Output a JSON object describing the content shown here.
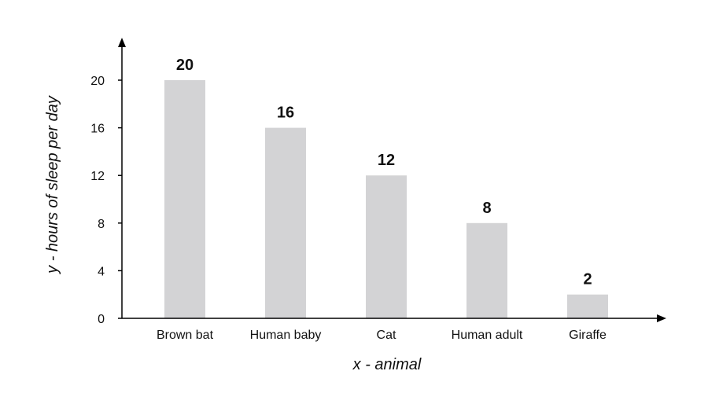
{
  "chart_data": {
    "type": "bar",
    "categories": [
      "Brown bat",
      "Human baby",
      "Cat",
      "Human adult",
      "Giraffe"
    ],
    "values": [
      20,
      16,
      12,
      8,
      2
    ],
    "data_labels": [
      "20",
      "16",
      "12",
      "8",
      "2"
    ],
    "xlabel": "x - animal",
    "ylabel": "y - hours of sleep per day",
    "yticks": [
      0,
      4,
      8,
      12,
      16,
      20
    ],
    "ytick_labels": [
      "0",
      "4",
      "8",
      "12",
      "16",
      "20"
    ],
    "ylim": [
      0,
      23
    ],
    "grid": false,
    "bar_color": "#d3d3d5",
    "axis_color": "#000000"
  }
}
